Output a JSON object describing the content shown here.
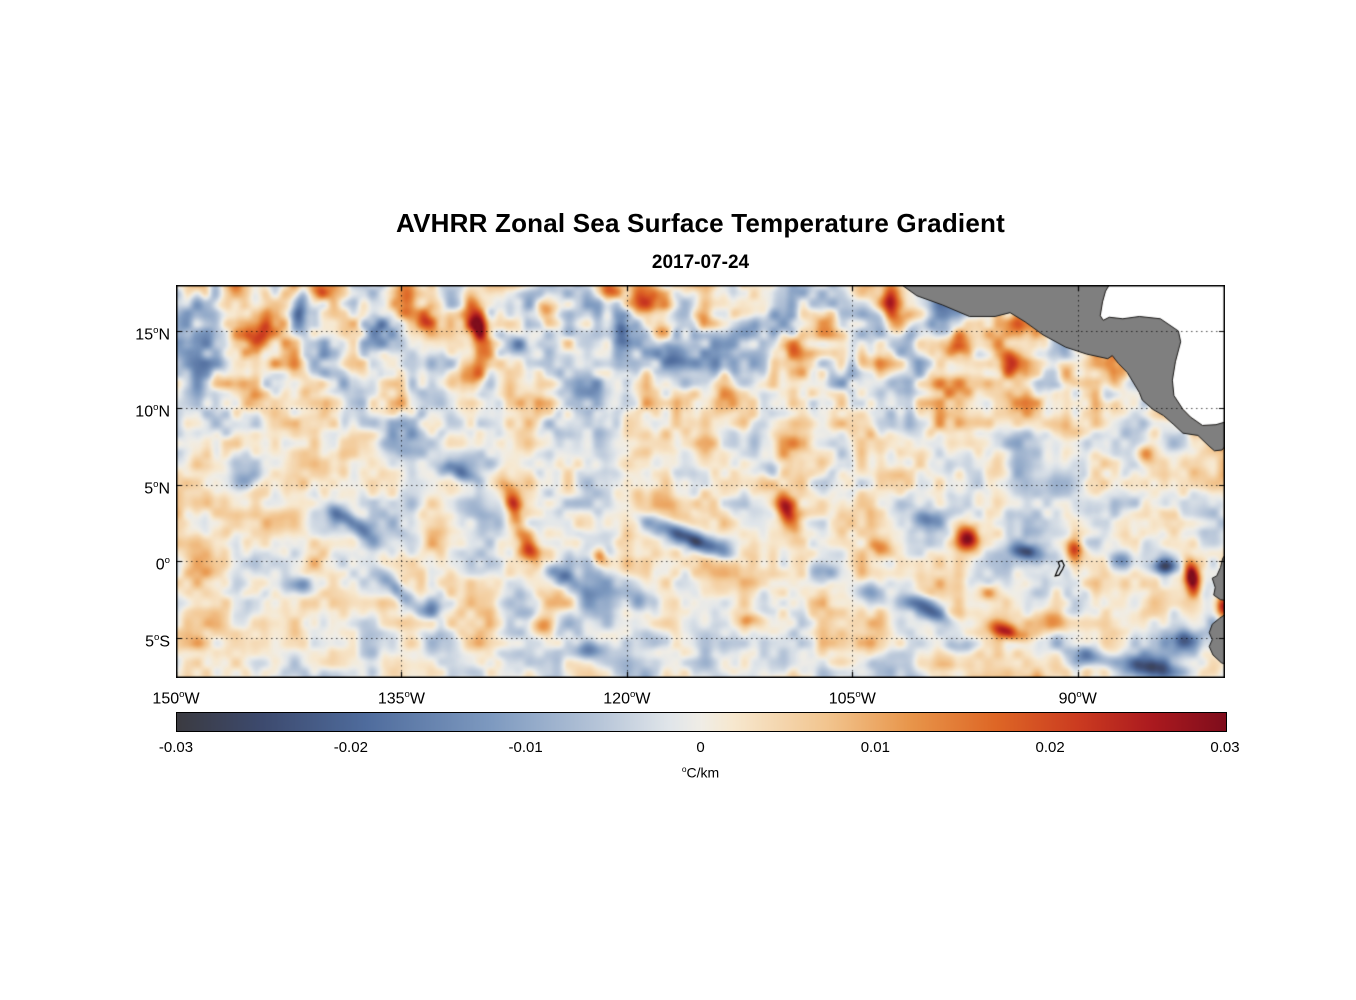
{
  "chart_data": {
    "type": "heatmap",
    "title": "AVHRR Zonal Sea Surface Temperature Gradient",
    "date": "2017-07-24",
    "units": {
      "sup": "o",
      "text": "C/km"
    },
    "value_range": [
      -0.03,
      0.03
    ],
    "lon_range": [
      -150,
      -80.2
    ],
    "lat_range": [
      -7.6,
      18
    ],
    "x_ticks": [
      {
        "label": "150",
        "sup": "o",
        "hemi": "W",
        "lon": -150
      },
      {
        "label": "135",
        "sup": "o",
        "hemi": "W",
        "lon": -135
      },
      {
        "label": "120",
        "sup": "o",
        "hemi": "W",
        "lon": -120
      },
      {
        "label": "105",
        "sup": "o",
        "hemi": "W",
        "lon": -105
      },
      {
        "label": "90",
        "sup": "o",
        "hemi": "W",
        "lon": -90
      }
    ],
    "y_ticks": [
      {
        "label": "15",
        "sup": "o",
        "hemi": "N",
        "lat": 15
      },
      {
        "label": "10",
        "sup": "o",
        "hemi": "N",
        "lat": 10
      },
      {
        "label": "5",
        "sup": "o",
        "hemi": "N",
        "lat": 5
      },
      {
        "label": "0",
        "sup": "o",
        "hemi": "",
        "lat": 0
      },
      {
        "label": "5",
        "sup": "o",
        "hemi": "S",
        "lat": -5
      }
    ],
    "grid": {
      "style": "dotted",
      "color": "rgba(0,0,0,0.7)",
      "lons": [
        -150,
        -135,
        -120,
        -105,
        -90
      ],
      "lats": [
        15,
        10,
        5,
        0,
        -5
      ]
    },
    "colorbar": {
      "ticks": [
        {
          "value": -0.03,
          "label": "-0.03"
        },
        {
          "value": -0.02,
          "label": "-0.02"
        },
        {
          "value": -0.01,
          "label": "-0.01"
        },
        {
          "value": 0,
          "label": "0"
        },
        {
          "value": 0.01,
          "label": "0.01"
        },
        {
          "value": 0.02,
          "label": "0.02"
        },
        {
          "value": 0.03,
          "label": "0.03"
        }
      ],
      "stops": [
        [
          0.0,
          "#3b3b41"
        ],
        [
          0.08,
          "#3d4a6e"
        ],
        [
          0.18,
          "#4f6c9d"
        ],
        [
          0.3,
          "#7e9ac0"
        ],
        [
          0.4,
          "#b5c4d8"
        ],
        [
          0.47,
          "#e1e6ea"
        ],
        [
          0.5,
          "#f0ede6"
        ],
        [
          0.53,
          "#f7e8cf"
        ],
        [
          0.62,
          "#f2c58f"
        ],
        [
          0.7,
          "#e8954a"
        ],
        [
          0.78,
          "#de6726"
        ],
        [
          0.86,
          "#cb3b20"
        ],
        [
          0.93,
          "#ab1a1f"
        ],
        [
          1.0,
          "#7f0d1c"
        ]
      ]
    },
    "land": {
      "fill": "#7f7f7f",
      "stroke": "#1a1a1a",
      "no_data_fill": "#ffffff",
      "polygons": {
        "central_america": [
          [
            -101.7,
            18
          ],
          [
            -100.7,
            17.3
          ],
          [
            -99.0,
            16.7
          ],
          [
            -97.2,
            15.95
          ],
          [
            -95.5,
            15.95
          ],
          [
            -94.5,
            16.2
          ],
          [
            -93.5,
            15.6
          ],
          [
            -92.3,
            14.75
          ],
          [
            -90.8,
            13.95
          ],
          [
            -89.4,
            13.5
          ],
          [
            -88.0,
            13.2
          ],
          [
            -87.7,
            13.4
          ],
          [
            -87.3,
            12.9
          ],
          [
            -86.7,
            12.3
          ],
          [
            -85.9,
            11.0
          ],
          [
            -85.7,
            10.5
          ],
          [
            -85.0,
            9.9
          ],
          [
            -84.3,
            9.5
          ],
          [
            -83.6,
            8.9
          ],
          [
            -83.0,
            8.35
          ],
          [
            -82.0,
            8.2
          ],
          [
            -81.2,
            7.45
          ],
          [
            -80.9,
            7.2
          ],
          [
            -80.4,
            7.25
          ],
          [
            -80.1,
            7.6
          ],
          [
            -80.1,
            9.1
          ],
          [
            -80.8,
            8.9
          ],
          [
            -81.7,
            8.85
          ],
          [
            -82.5,
            9.4
          ],
          [
            -83.0,
            9.9
          ],
          [
            -83.6,
            10.8
          ],
          [
            -83.7,
            11.8
          ],
          [
            -83.5,
            13.0
          ],
          [
            -83.15,
            14.3
          ],
          [
            -83.3,
            15.0
          ],
          [
            -84.5,
            15.8
          ],
          [
            -85.9,
            15.95
          ],
          [
            -87.0,
            15.8
          ],
          [
            -87.9,
            15.9
          ],
          [
            -88.3,
            15.7
          ],
          [
            -88.5,
            16.0
          ],
          [
            -88.35,
            16.9
          ],
          [
            -88.15,
            17.6
          ],
          [
            -87.9,
            18
          ]
        ],
        "ecuador": [
          [
            -80.1,
            0.55
          ],
          [
            -80.35,
            0.2
          ],
          [
            -80.5,
            -0.4
          ],
          [
            -80.75,
            -0.95
          ],
          [
            -81.05,
            -1.1
          ],
          [
            -80.85,
            -1.7
          ],
          [
            -80.95,
            -2.2
          ],
          [
            -80.5,
            -2.5
          ],
          [
            -80.1,
            -2.55
          ]
        ],
        "peru": [
          [
            -80.1,
            -3.4
          ],
          [
            -80.55,
            -3.7
          ],
          [
            -81.05,
            -4.1
          ],
          [
            -81.25,
            -4.65
          ],
          [
            -81.05,
            -5.1
          ],
          [
            -81.25,
            -5.55
          ],
          [
            -81.0,
            -6.1
          ],
          [
            -80.45,
            -6.6
          ],
          [
            -80.1,
            -6.75
          ]
        ]
      },
      "caribbean_mask": [
        [
          -87.9,
          18
        ],
        [
          -88.15,
          17.6
        ],
        [
          -88.35,
          16.9
        ],
        [
          -88.5,
          16.0
        ],
        [
          -88.3,
          15.7
        ],
        [
          -87.9,
          15.9
        ],
        [
          -87.0,
          15.8
        ],
        [
          -85.9,
          15.95
        ],
        [
          -84.5,
          15.8
        ],
        [
          -83.3,
          15.0
        ],
        [
          -83.15,
          14.3
        ],
        [
          -83.5,
          13.0
        ],
        [
          -83.7,
          11.8
        ],
        [
          -83.6,
          10.8
        ],
        [
          -83.0,
          9.9
        ],
        [
          -82.5,
          9.4
        ],
        [
          -81.7,
          8.85
        ],
        [
          -80.8,
          8.9
        ],
        [
          -80.1,
          9.1
        ],
        [
          -80.1,
          18
        ]
      ],
      "galapagos_outline": [
        [
          -91.05,
          0.05
        ],
        [
          -90.9,
          -0.25
        ],
        [
          -91.0,
          -0.5
        ],
        [
          -91.25,
          -0.9
        ],
        [
          -91.5,
          -0.95
        ],
        [
          -91.35,
          -0.6
        ],
        [
          -91.2,
          -0.3
        ],
        [
          -91.3,
          -0.05
        ]
      ]
    },
    "field": {
      "noise": {
        "seed": 11,
        "octaves": [
          [
            2.6,
            0.006
          ],
          [
            1.3,
            0.005
          ],
          [
            0.65,
            0.0035
          ],
          [
            6.5,
            0.003
          ]
        ],
        "band_boost": {
          "center_lat": 13.5,
          "width": 4.5,
          "factor": 0.7
        }
      },
      "features_format": [
        "lon",
        "lat",
        "sigma_major_deg",
        "sigma_minor_deg",
        "rotation_deg",
        "amplitude_C_per_km"
      ],
      "features": [
        [
          -147.4,
          17.5,
          0.5,
          1.2,
          0,
          -0.016
        ],
        [
          -146.0,
          17.8,
          0.5,
          0.8,
          0,
          0.012
        ],
        [
          -144.5,
          14.9,
          0.9,
          0.9,
          0,
          0.016
        ],
        [
          -141.8,
          16.2,
          0.5,
          1.6,
          -10,
          -0.018
        ],
        [
          -140.5,
          17.5,
          0.6,
          0.6,
          0,
          0.012
        ],
        [
          -136.7,
          15.0,
          0.8,
          0.8,
          0,
          -0.012
        ],
        [
          -134.7,
          17.0,
          0.8,
          1.5,
          0,
          0.022
        ],
        [
          -133.4,
          15.8,
          0.6,
          0.8,
          0,
          0.014
        ],
        [
          -129.9,
          15.2,
          0.7,
          1.7,
          15,
          0.027
        ],
        [
          -130.3,
          12.5,
          0.8,
          1.0,
          0,
          0.02
        ],
        [
          -127.1,
          14.0,
          0.9,
          0.7,
          0,
          -0.012
        ],
        [
          -125.4,
          16.3,
          0.7,
          0.7,
          0,
          0.013
        ],
        [
          -121.1,
          17.6,
          0.8,
          0.6,
          0,
          0.015
        ],
        [
          -120.3,
          15.0,
          0.6,
          0.9,
          0,
          -0.016
        ],
        [
          -118.8,
          16.9,
          1.2,
          1.1,
          0,
          0.025
        ],
        [
          -117.6,
          15.1,
          0.8,
          0.9,
          0,
          0.02
        ],
        [
          -116.8,
          13.4,
          0.9,
          0.7,
          0,
          -0.013
        ],
        [
          -115.0,
          15.7,
          0.7,
          0.7,
          0,
          0.012
        ],
        [
          -112.1,
          15.0,
          0.8,
          0.8,
          0,
          -0.011
        ],
        [
          -108.8,
          14.1,
          0.7,
          0.7,
          0,
          0.013
        ],
        [
          -104.8,
          12.6,
          1.0,
          0.9,
          0,
          -0.015
        ],
        [
          -102.4,
          16.9,
          0.8,
          1.2,
          0,
          0.022
        ],
        [
          -101.0,
          15.0,
          0.7,
          0.7,
          0,
          -0.011
        ],
        [
          -98.0,
          14.1,
          0.8,
          0.9,
          0,
          0.021
        ],
        [
          -94.5,
          12.9,
          0.8,
          0.8,
          0,
          0.02
        ],
        [
          -90.8,
          12.3,
          0.7,
          0.9,
          0,
          0.019
        ],
        [
          -87.8,
          10.8,
          0.8,
          0.8,
          0,
          -0.013
        ],
        [
          -85.5,
          7.0,
          0.7,
          0.7,
          0,
          0.014
        ],
        [
          -145.1,
          5.3,
          0.9,
          0.7,
          0,
          -0.013
        ],
        [
          -138.4,
          2.6,
          2.0,
          0.55,
          -35,
          -0.021
        ],
        [
          -135.3,
          -1.8,
          1.6,
          0.5,
          -45,
          -0.018
        ],
        [
          -141.7,
          -1.6,
          0.9,
          0.6,
          0,
          -0.011
        ],
        [
          -131.2,
          5.8,
          1.6,
          0.5,
          -20,
          -0.015
        ],
        [
          -127.6,
          3.8,
          0.55,
          1.5,
          15,
          0.026
        ],
        [
          -126.5,
          0.8,
          0.6,
          1.0,
          25,
          0.02
        ],
        [
          -124.4,
          -0.9,
          1.5,
          0.5,
          -35,
          -0.018
        ],
        [
          -121.8,
          0.3,
          0.5,
          0.6,
          0,
          0.016
        ],
        [
          -115.8,
          1.5,
          3.0,
          0.6,
          -22,
          -0.028
        ],
        [
          -109.2,
          3.0,
          0.6,
          1.3,
          25,
          0.022
        ],
        [
          -110.4,
          5.9,
          0.9,
          0.6,
          0,
          -0.011
        ],
        [
          -119.1,
          -2.6,
          1.0,
          0.7,
          0,
          -0.012
        ],
        [
          -103.1,
          1.0,
          0.7,
          0.6,
          0,
          0.013
        ],
        [
          -100.1,
          2.8,
          0.8,
          0.6,
          0,
          -0.012
        ],
        [
          -97.3,
          1.5,
          0.75,
          0.85,
          0,
          0.033
        ],
        [
          -93.2,
          0.6,
          1.3,
          0.5,
          -10,
          -0.02
        ],
        [
          -90.2,
          0.8,
          0.55,
          0.75,
          0,
          0.026
        ],
        [
          -87.2,
          0.1,
          0.8,
          0.6,
          0,
          -0.012
        ],
        [
          -84.2,
          -0.3,
          0.9,
          0.55,
          0,
          -0.03
        ],
        [
          -82.4,
          -1.0,
          0.5,
          1.0,
          10,
          0.032
        ],
        [
          -80.3,
          -2.9,
          0.45,
          0.8,
          0,
          0.035
        ],
        [
          -133.1,
          -3.2,
          0.9,
          0.6,
          0,
          -0.011
        ],
        [
          -125.7,
          -4.2,
          0.8,
          0.6,
          0,
          0.015
        ],
        [
          -122.4,
          -5.8,
          1.2,
          0.6,
          0,
          -0.015
        ],
        [
          -117.4,
          -5.2,
          1.0,
          0.6,
          0,
          -0.011
        ],
        [
          -111.8,
          -3.8,
          0.8,
          0.5,
          0,
          0.011
        ],
        [
          -107.1,
          -0.7,
          0.9,
          0.6,
          0,
          -0.011
        ],
        [
          -103.8,
          -2.0,
          1.0,
          0.6,
          -20,
          -0.013
        ],
        [
          -99.8,
          -3.2,
          1.6,
          0.6,
          -30,
          -0.02
        ],
        [
          -97.8,
          -5.5,
          1.0,
          0.6,
          0,
          -0.014
        ],
        [
          -94.6,
          -4.6,
          1.4,
          0.5,
          -20,
          0.02
        ],
        [
          -89.1,
          -6.2,
          1.2,
          0.6,
          -10,
          -0.02
        ],
        [
          -85.2,
          -6.9,
          1.7,
          0.7,
          -10,
          -0.024
        ],
        [
          -82.8,
          -5.2,
          1.0,
          0.6,
          0,
          -0.018
        ],
        [
          -96.0,
          -2.0,
          0.8,
          0.5,
          0,
          0.012
        ],
        [
          -91.5,
          -4.0,
          0.9,
          0.6,
          0,
          0.013
        ]
      ]
    }
  }
}
